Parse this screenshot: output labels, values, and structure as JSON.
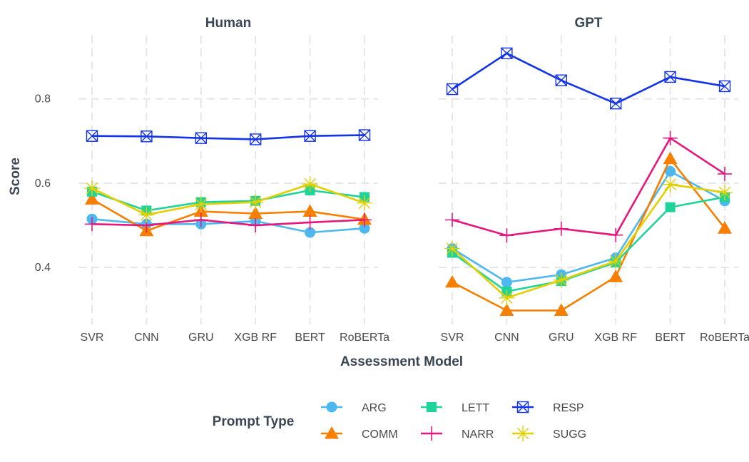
{
  "chart_data": {
    "type": "line",
    "facets": [
      "Human",
      "GPT"
    ],
    "categories": [
      "SVR",
      "CNN",
      "GRU",
      "XGB RF",
      "BERT",
      "RoBERTa"
    ],
    "xlabel": "Assessment Model",
    "ylabel": "Score",
    "ylim": [
      0.265,
      0.95
    ],
    "yticks": [
      0.4,
      0.6,
      0.8
    ],
    "legend_title": "Prompt Type",
    "legend_position": "bottom",
    "grid": true,
    "series": [
      {
        "name": "ARG",
        "color": "#4db8f0",
        "shape": "circle",
        "values": {
          "Human": [
            0.515,
            0.503,
            0.503,
            0.51,
            0.483,
            0.493
          ],
          "GPT": [
            0.445,
            0.365,
            0.383,
            0.423,
            0.628,
            0.558
          ]
        }
      },
      {
        "name": "COMM",
        "color": "#f77f00",
        "shape": "triangle",
        "values": {
          "Human": [
            0.562,
            0.487,
            0.533,
            0.528,
            0.533,
            0.514
          ],
          "GPT": [
            0.365,
            0.298,
            0.298,
            0.378,
            0.658,
            0.493
          ]
        }
      },
      {
        "name": "LETT",
        "color": "#1fd49a",
        "shape": "square",
        "values": {
          "Human": [
            0.58,
            0.535,
            0.555,
            0.558,
            0.583,
            0.567
          ],
          "GPT": [
            0.435,
            0.343,
            0.368,
            0.412,
            0.543,
            0.567
          ]
        }
      },
      {
        "name": "NARR",
        "color": "#e8177d",
        "shape": "plus",
        "values": {
          "Human": [
            0.503,
            0.5,
            0.513,
            0.5,
            0.507,
            0.513
          ],
          "GPT": [
            0.513,
            0.476,
            0.492,
            0.477,
            0.707,
            0.622
          ]
        }
      },
      {
        "name": "RESP",
        "color": "#1334e8",
        "shape": "boxx",
        "values": {
          "Human": [
            0.712,
            0.711,
            0.707,
            0.704,
            0.712,
            0.714
          ],
          "GPT": [
            0.823,
            0.908,
            0.844,
            0.789,
            0.852,
            0.83
          ]
        }
      },
      {
        "name": "SUGG",
        "color": "#e2d000",
        "shape": "star",
        "values": {
          "Human": [
            0.588,
            0.525,
            0.55,
            0.555,
            0.598,
            0.553
          ],
          "GPT": [
            0.445,
            0.328,
            0.37,
            0.415,
            0.597,
            0.578
          ]
        }
      }
    ]
  }
}
